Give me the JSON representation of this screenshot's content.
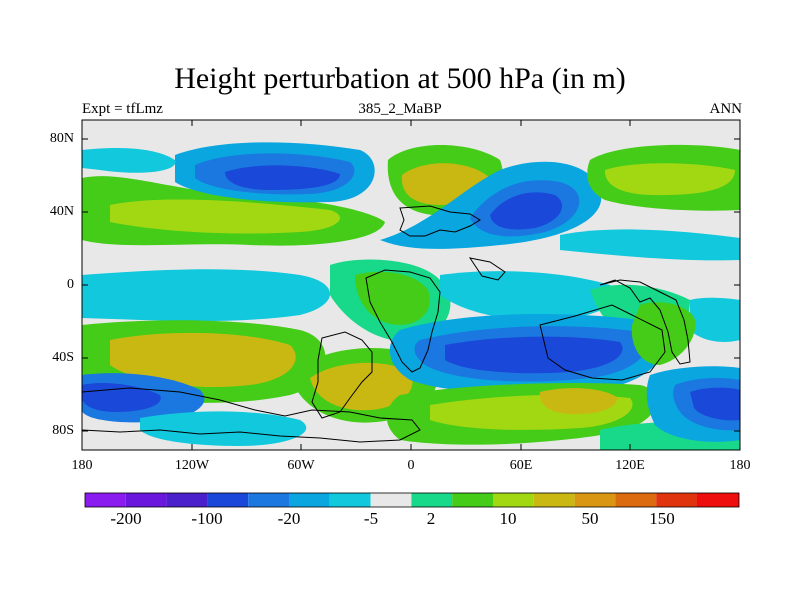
{
  "map": {
    "title": "Height perturbation at 500 hPa (in m)",
    "left_subtitle": "Expt = tfLmz",
    "center_subtitle": "385_2_MaBP",
    "right_subtitle": "ANN",
    "variable": "500 hPa geopotential height perturbation",
    "units": "m",
    "lat_range": [
      -90,
      90
    ],
    "lon_range": [
      -180,
      180
    ],
    "y_ticks": [
      "80N",
      "40N",
      "0",
      "40S",
      "80S"
    ],
    "x_ticks": [
      "180",
      "120W",
      "60W",
      "0",
      "60E",
      "120E",
      "180"
    ]
  },
  "colorbar": {
    "colors": [
      "#8a1cf0",
      "#6a16dc",
      "#4a20cc",
      "#1a48d8",
      "#1a78e0",
      "#0aa6e0",
      "#12c8dc",
      "#e8e8e8",
      "#18d88a",
      "#44cc18",
      "#a2d812",
      "#cab812",
      "#d89612",
      "#dc6a0e",
      "#e0340e",
      "#ee0e0e"
    ],
    "labels": [
      "-200",
      "-100",
      "-20",
      "-5",
      "2",
      "10",
      "50",
      "150"
    ]
  }
}
